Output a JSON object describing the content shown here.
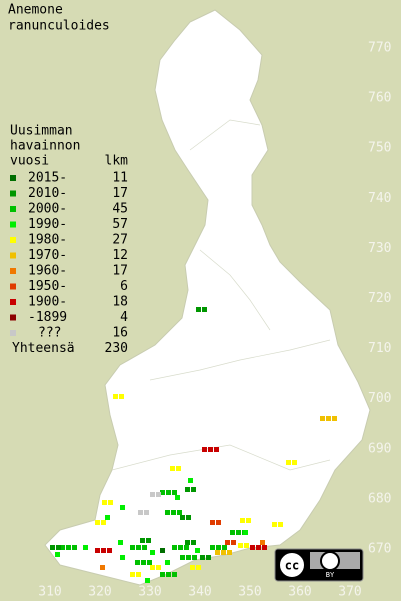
{
  "title": [
    "Anemone",
    "ranunculoides"
  ],
  "legend": {
    "heading": [
      "Uusimman",
      "havainnon",
      "vuosi"
    ],
    "count_header": "lkm",
    "entries": [
      {
        "label": "2015-",
        "count": 11,
        "color": "#006e00"
      },
      {
        "label": "2010-",
        "count": 17,
        "color": "#009600"
      },
      {
        "label": "2000-",
        "count": 45,
        "color": "#00c000"
      },
      {
        "label": "1990-",
        "count": 57,
        "color": "#00ee00"
      },
      {
        "label": "1980-",
        "count": 27,
        "color": "#ffff00"
      },
      {
        "label": "1970-",
        "count": 12,
        "color": "#f0c000"
      },
      {
        "label": "1960-",
        "count": 17,
        "color": "#f07800"
      },
      {
        "label": "1950-",
        "count": 6,
        "color": "#e03c00"
      },
      {
        "label": "1900-",
        "count": 18,
        "color": "#c80000"
      },
      {
        "label": "-1899",
        "count": 4,
        "color": "#8c0000"
      },
      {
        "label": "???",
        "count": 16,
        "color": "#c8c8c8"
      }
    ],
    "total": {
      "label": "Yhteensä",
      "count": 230
    }
  },
  "yticks": [
    770,
    760,
    750,
    740,
    730,
    720,
    710,
    700,
    690,
    680,
    670
  ],
  "xticks": [
    310,
    320,
    330,
    340,
    350,
    360,
    370
  ],
  "badge": {
    "cc": "cc",
    "by": "BY"
  }
}
